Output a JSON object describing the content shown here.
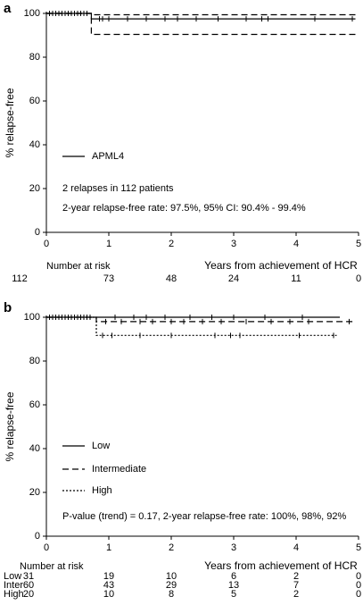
{
  "chart_data": [
    {
      "type": "step",
      "panel": "a",
      "ylabel": "% relapse-free",
      "xlabel": "Years from achievement of HCR",
      "xlim": [
        0,
        5
      ],
      "xticks": [
        0,
        1,
        2,
        3,
        4,
        5
      ],
      "ylim": [
        0,
        100
      ],
      "yticks": [
        0,
        20,
        40,
        60,
        80,
        100
      ],
      "series": [
        {
          "name": "APML4",
          "color": "#000000",
          "dash": "solid",
          "x": [
            0,
            0.72,
            4.95
          ],
          "values": [
            100,
            97.5,
            97.5
          ],
          "censored_x": [
            0.05,
            0.1,
            0.15,
            0.2,
            0.25,
            0.3,
            0.35,
            0.4,
            0.45,
            0.5,
            0.55,
            0.6,
            0.65,
            0.85,
            0.9,
            1.0,
            1.3,
            1.6,
            1.9,
            2.1,
            2.4,
            2.75,
            3.2,
            3.45,
            3.55,
            4.3,
            4.9
          ]
        },
        {
          "color": "#000000",
          "dash": "dashed",
          "x": [
            0,
            0.72,
            4.95
          ],
          "values": [
            100,
            99.4,
            99.4
          ]
        },
        {
          "color": "#000000",
          "dash": "dashed",
          "x": [
            0,
            0.72,
            4.95
          ],
          "values": [
            100,
            90.4,
            90.4
          ]
        }
      ],
      "annotations": [
        "2 relapses in 112 patients",
        "2-year relapse-free rate: 97.5%, 95% CI: 90.4% - 99.4%"
      ],
      "at_risk": {
        "label": "Number at risk",
        "rows": [
          {
            "values": [
              112,
              73,
              48,
              24,
              11,
              0
            ]
          }
        ]
      }
    },
    {
      "type": "step",
      "panel": "b",
      "ylabel": "% relapse-free",
      "xlabel": "Years from achievement of HCR",
      "xlim": [
        0,
        5
      ],
      "xticks": [
        0,
        1,
        2,
        3,
        4,
        5
      ],
      "ylim": [
        0,
        100
      ],
      "yticks": [
        0,
        20,
        40,
        60,
        80,
        100
      ],
      "series": [
        {
          "name": "Low",
          "color": "#000000",
          "dash": "solid",
          "x": [
            0,
            4.7
          ],
          "values": [
            100,
            100
          ],
          "censored_x": [
            0.05,
            0.15,
            0.25,
            0.35,
            0.45,
            0.55,
            0.65,
            1.1,
            1.4,
            1.6,
            1.9,
            2.3,
            2.65,
            3.0,
            3.5,
            4.1
          ]
        },
        {
          "name": "Intermediate",
          "color": "#000000",
          "dash": "dashed",
          "x": [
            0,
            0.8,
            4.95
          ],
          "values": [
            100,
            98,
            98
          ],
          "censored_x": [
            0.1,
            0.2,
            0.3,
            0.4,
            0.5,
            0.6,
            0.7,
            0.95,
            1.2,
            1.5,
            1.7,
            2.0,
            2.2,
            2.5,
            2.8,
            3.2,
            3.6,
            3.9,
            4.2,
            4.85
          ]
        },
        {
          "name": "High",
          "color": "#000000",
          "dash": "dotted",
          "x": [
            0,
            0.8,
            4.65
          ],
          "values": [
            100,
            91.7,
            91.7
          ],
          "censored_x": [
            0.2,
            0.5,
            0.9,
            1.05,
            1.5,
            2.0,
            2.7,
            2.95,
            3.1,
            4.05,
            4.6
          ]
        }
      ],
      "annotations": [
        "P-value (trend) = 0.17, 2-year relapse-free rate: 100%, 98%, 92%"
      ],
      "at_risk": {
        "label": "Number at risk",
        "rows": [
          {
            "name": "Low",
            "values": [
              31,
              19,
              10,
              6,
              2,
              0
            ]
          },
          {
            "name": "Inter",
            "values": [
              60,
              43,
              29,
              13,
              7,
              0
            ]
          },
          {
            "name": "High",
            "values": [
              20,
              10,
              8,
              5,
              2,
              0
            ]
          }
        ]
      }
    }
  ]
}
